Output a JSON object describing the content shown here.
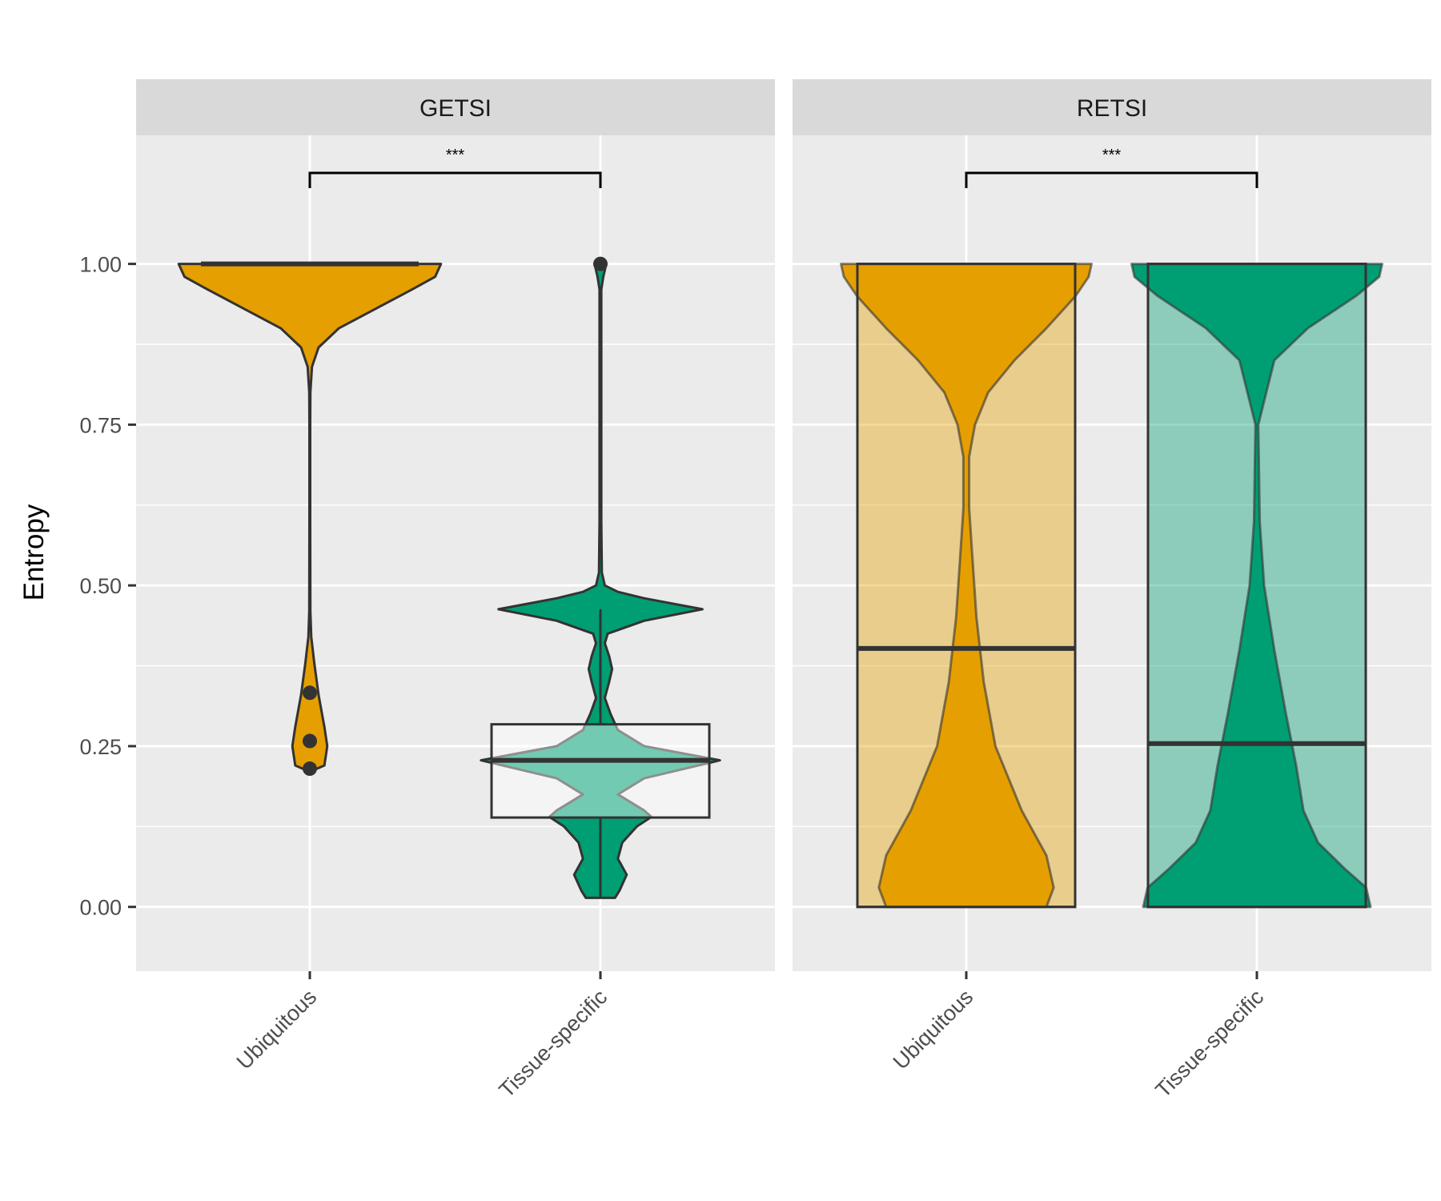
{
  "chart_data": {
    "type": "violin",
    "ylabel": "Entropy",
    "ylim": [
      -0.1,
      1.2
    ],
    "yticks": [
      "0.00",
      "0.25",
      "0.50",
      "0.75",
      "1.00"
    ],
    "ytick_values": [
      0,
      0.25,
      0.5,
      0.75,
      1.0
    ],
    "grid": true,
    "categories": [
      "Ubiquitous",
      "Tissue-specific"
    ],
    "colors": {
      "Ubiquitous": "#E69F00",
      "Tissue-specific": "#009E73",
      "panel_bg": "#EBEBEB",
      "strip_bg": "#D9D9D9"
    },
    "panels": [
      {
        "strip": "GETSI",
        "significance": "***",
        "groups": [
          {
            "name": "Ubiquitous",
            "box": {
              "q1": 1.0,
              "median": 1.0,
              "q3": 1.0,
              "whisker_low": 1.0,
              "whisker_high": 1.0
            },
            "outliers": [
              0.333,
              0.258,
              0.215
            ],
            "violin": [
              [
                0.215,
                0.05
              ],
              [
                0.22,
                0.1
              ],
              [
                0.25,
                0.12
              ],
              [
                0.28,
                0.1
              ],
              [
                0.33,
                0.06
              ],
              [
                0.38,
                0.03
              ],
              [
                0.42,
                0.01
              ],
              [
                0.46,
                0.004
              ],
              [
                0.6,
                0.003
              ],
              [
                0.75,
                0.003
              ],
              [
                0.8,
                0.004
              ],
              [
                0.84,
                0.015
              ],
              [
                0.87,
                0.06
              ],
              [
                0.9,
                0.2
              ],
              [
                0.93,
                0.45
              ],
              [
                0.96,
                0.7
              ],
              [
                0.98,
                0.86
              ],
              [
                1.0,
                0.9
              ]
            ]
          },
          {
            "name": "Tissue-specific",
            "box": {
              "q1": 0.139,
              "median": 0.228,
              "q3": 0.284,
              "whisker_low": 0.014,
              "whisker_high": 0.463
            },
            "outliers": [
              1.0
            ],
            "violin": [
              [
                0.014,
                0.1
              ],
              [
                0.025,
                0.13
              ],
              [
                0.05,
                0.18
              ],
              [
                0.075,
                0.12
              ],
              [
                0.1,
                0.15
              ],
              [
                0.125,
                0.25
              ],
              [
                0.14,
                0.35
              ],
              [
                0.15,
                0.3
              ],
              [
                0.175,
                0.12
              ],
              [
                0.2,
                0.3
              ],
              [
                0.228,
                0.82
              ],
              [
                0.25,
                0.3
              ],
              [
                0.275,
                0.12
              ],
              [
                0.3,
                0.07
              ],
              [
                0.325,
                0.03
              ],
              [
                0.35,
                0.06
              ],
              [
                0.37,
                0.08
              ],
              [
                0.39,
                0.06
              ],
              [
                0.41,
                0.03
              ],
              [
                0.425,
                0.05
              ],
              [
                0.445,
                0.3
              ],
              [
                0.463,
                0.7
              ],
              [
                0.48,
                0.3
              ],
              [
                0.49,
                0.12
              ],
              [
                0.5,
                0.03
              ],
              [
                0.52,
                0.01
              ],
              [
                0.6,
                0.006
              ],
              [
                0.8,
                0.006
              ],
              [
                0.96,
                0.006
              ],
              [
                0.98,
                0.02
              ],
              [
                1.0,
                0.04
              ]
            ]
          }
        ]
      },
      {
        "strip": "RETSI",
        "significance": "***",
        "groups": [
          {
            "name": "Ubiquitous",
            "box": {
              "q1": 0.0,
              "median": 0.402,
              "q3": 1.0,
              "whisker_low": 0.0,
              "whisker_high": 1.0
            },
            "outliers": [],
            "violin": [
              [
                0.0,
                0.55
              ],
              [
                0.03,
                0.6
              ],
              [
                0.08,
                0.55
              ],
              [
                0.15,
                0.38
              ],
              [
                0.25,
                0.2
              ],
              [
                0.35,
                0.12
              ],
              [
                0.45,
                0.07
              ],
              [
                0.55,
                0.04
              ],
              [
                0.62,
                0.02
              ],
              [
                0.7,
                0.02
              ],
              [
                0.75,
                0.06
              ],
              [
                0.8,
                0.15
              ],
              [
                0.85,
                0.33
              ],
              [
                0.9,
                0.55
              ],
              [
                0.95,
                0.75
              ],
              [
                0.98,
                0.84
              ],
              [
                1.0,
                0.86
              ]
            ]
          },
          {
            "name": "Tissue-specific",
            "box": {
              "q1": 0.0,
              "median": 0.254,
              "q3": 1.0,
              "whisker_low": 0.0,
              "whisker_high": 1.0
            },
            "outliers": [],
            "violin": [
              [
                0.0,
                0.78
              ],
              [
                0.03,
                0.75
              ],
              [
                0.06,
                0.6
              ],
              [
                0.1,
                0.42
              ],
              [
                0.15,
                0.32
              ],
              [
                0.22,
                0.27
              ],
              [
                0.3,
                0.2
              ],
              [
                0.4,
                0.12
              ],
              [
                0.5,
                0.05
              ],
              [
                0.6,
                0.02
              ],
              [
                0.75,
                0.01
              ],
              [
                0.85,
                0.12
              ],
              [
                0.9,
                0.35
              ],
              [
                0.95,
                0.68
              ],
              [
                0.98,
                0.84
              ],
              [
                1.0,
                0.86
              ]
            ]
          }
        ]
      }
    ]
  }
}
